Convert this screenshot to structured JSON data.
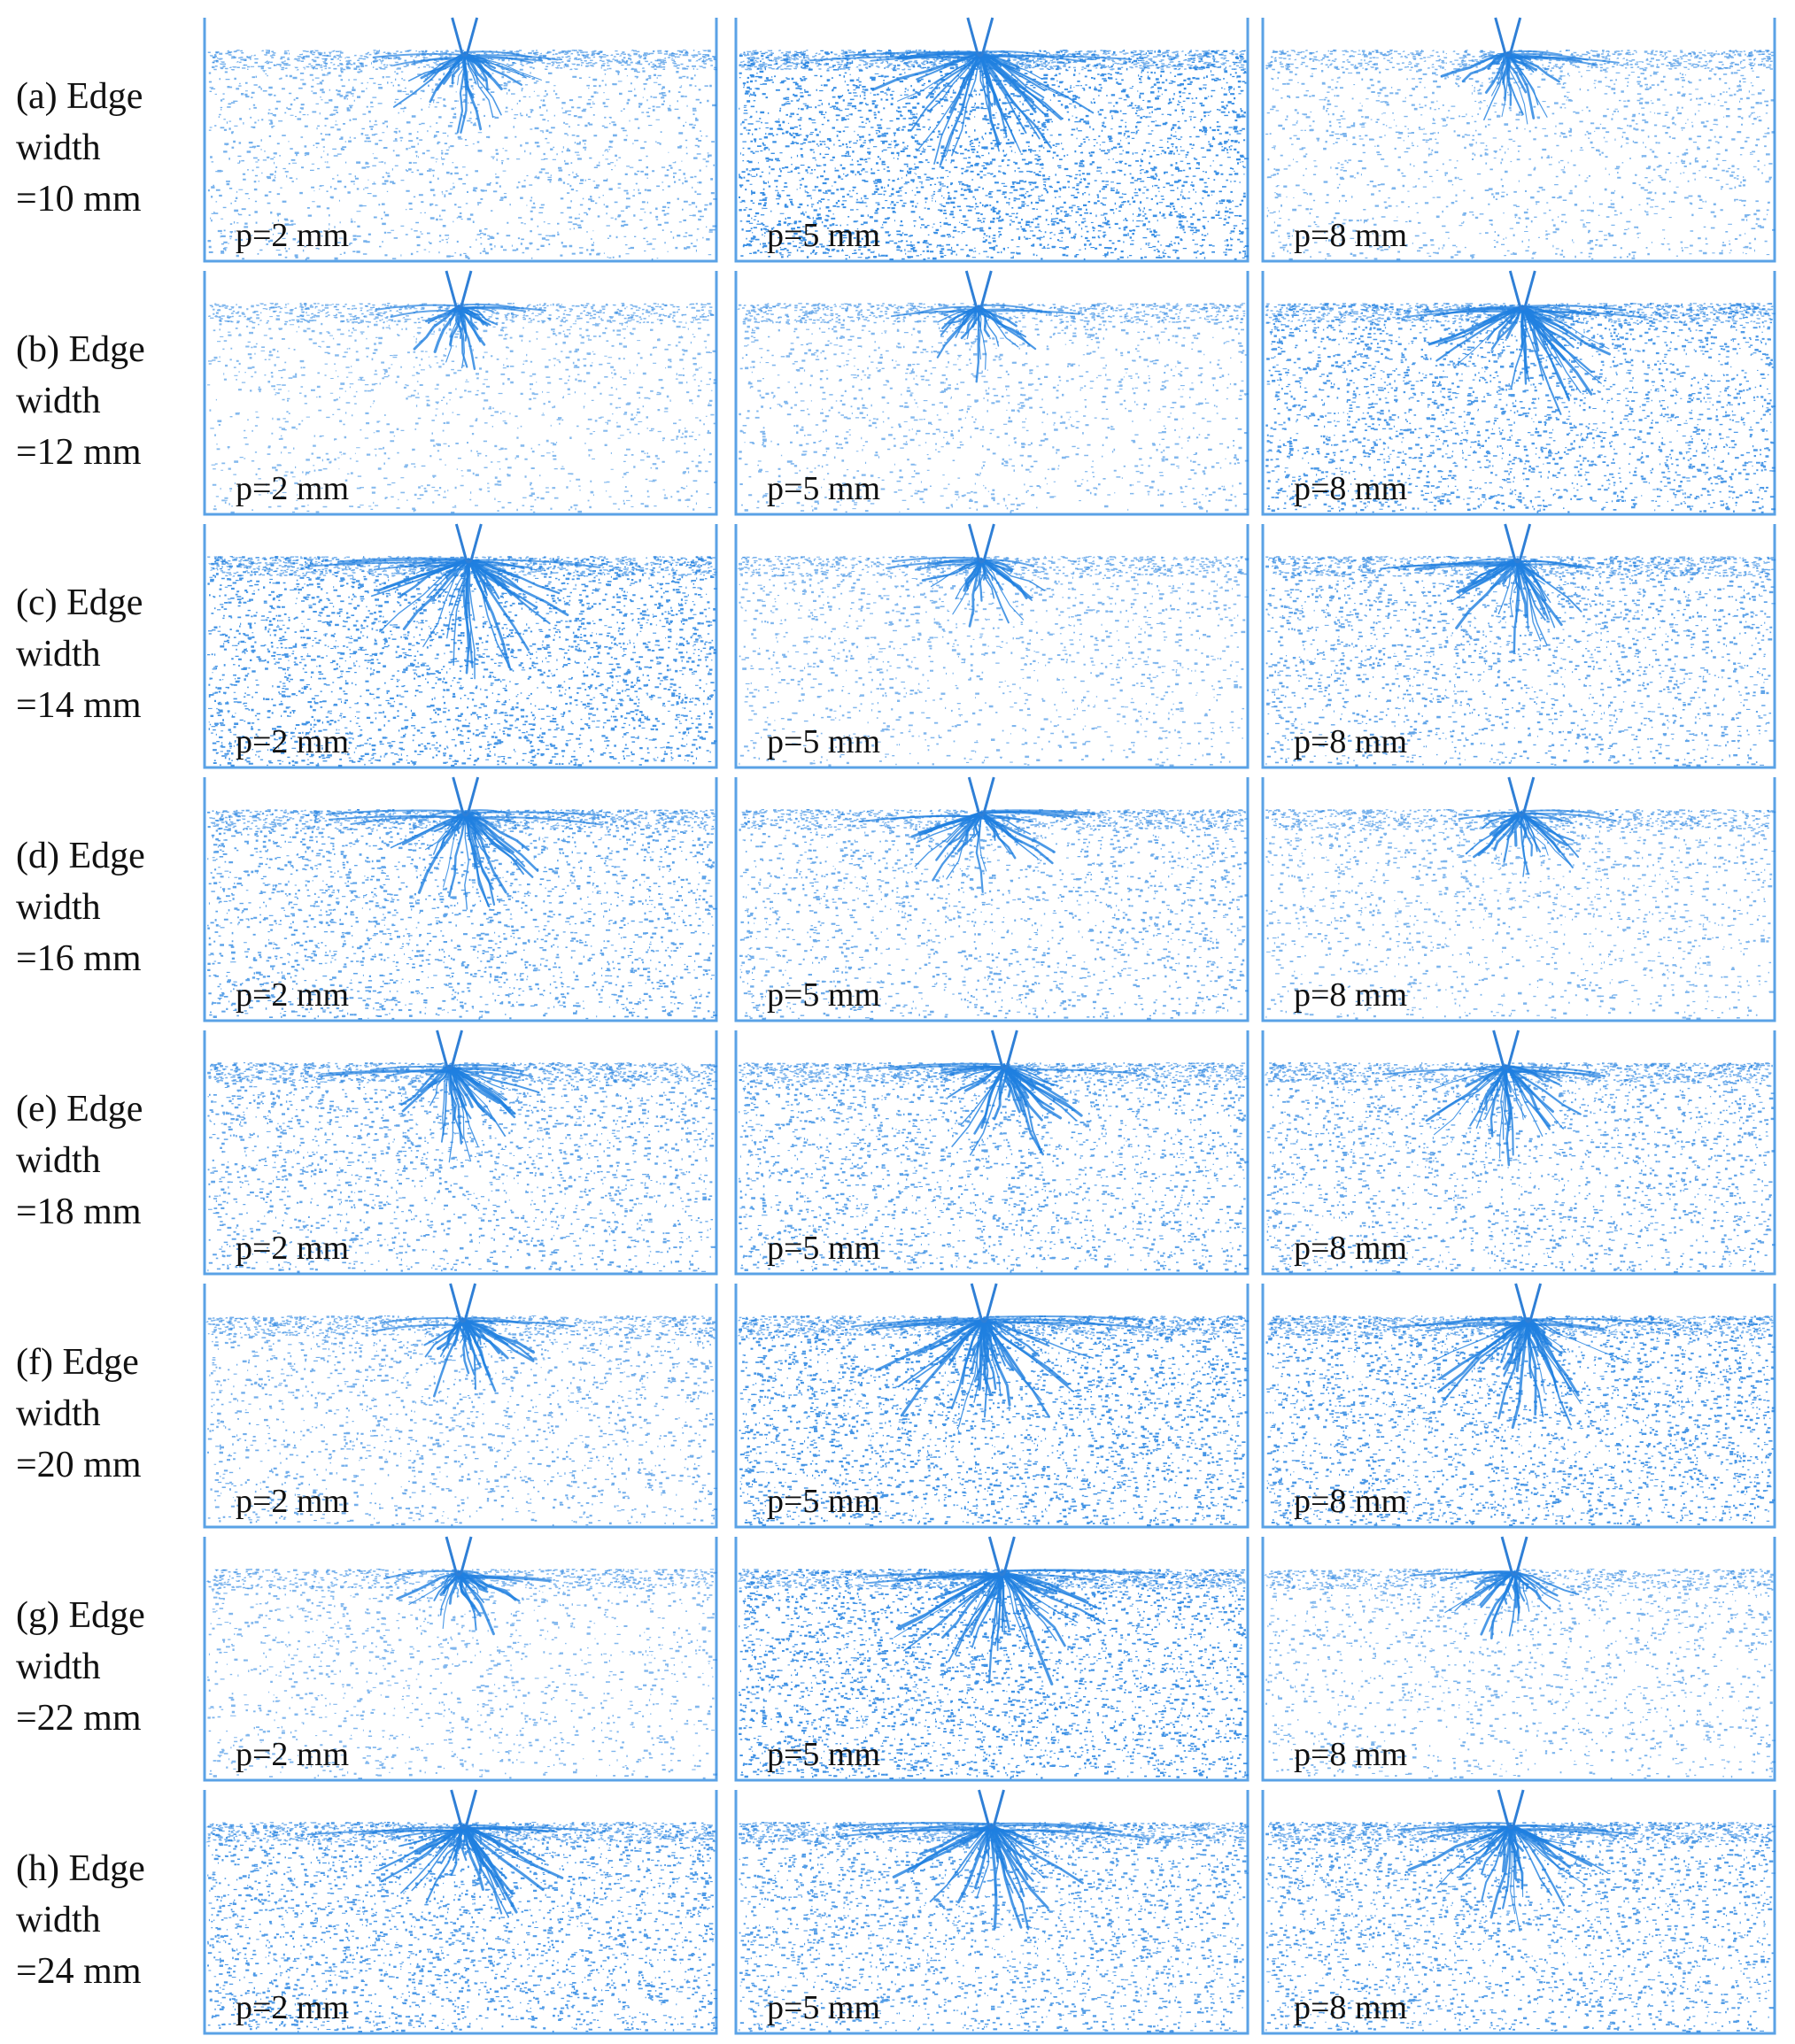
{
  "figure": {
    "rows": [
      {
        "label_lines": [
          "(a) Edge",
          "width",
          "=10 mm"
        ],
        "panels": [
          {
            "label": "p=2 mm",
            "density": 0.35
          },
          {
            "label": "p=5 mm",
            "density": 0.95
          },
          {
            "label": "p=8 mm",
            "density": 0.3
          }
        ]
      },
      {
        "label_lines": [
          "(b) Edge",
          "width",
          "=12 mm"
        ],
        "panels": [
          {
            "label": "p=2 mm",
            "density": 0.2
          },
          {
            "label": "p=5 mm",
            "density": 0.25
          },
          {
            "label": "p=8 mm",
            "density": 0.75
          }
        ]
      },
      {
        "label_lines": [
          "(c) Edge",
          "width",
          "=14 mm"
        ],
        "panels": [
          {
            "label": "p=2 mm",
            "density": 0.85
          },
          {
            "label": "p=5 mm",
            "density": 0.25
          },
          {
            "label": "p=8 mm",
            "density": 0.55
          }
        ]
      },
      {
        "label_lines": [
          "(d) Edge",
          "width",
          "=16 mm"
        ],
        "panels": [
          {
            "label": "p=2 mm",
            "density": 0.6
          },
          {
            "label": "p=5 mm",
            "density": 0.45
          },
          {
            "label": "p=8 mm",
            "density": 0.3
          }
        ]
      },
      {
        "label_lines": [
          "(e) Edge",
          "width",
          "=18 mm"
        ],
        "panels": [
          {
            "label": "p=2 mm",
            "density": 0.55
          },
          {
            "label": "p=5 mm",
            "density": 0.6
          },
          {
            "label": "p=8 mm",
            "density": 0.55
          }
        ]
      },
      {
        "label_lines": [
          "(f) Edge",
          "width",
          "=20 mm"
        ],
        "panels": [
          {
            "label": "p=2 mm",
            "density": 0.4
          },
          {
            "label": "p=5 mm",
            "density": 0.85
          },
          {
            "label": "p=8 mm",
            "density": 0.8
          }
        ]
      },
      {
        "label_lines": [
          "(g) Edge",
          "width",
          "=22 mm"
        ],
        "panels": [
          {
            "label": "p=2 mm",
            "density": 0.25
          },
          {
            "label": "p=5 mm",
            "density": 0.9
          },
          {
            "label": "p=8 mm",
            "density": 0.3
          }
        ]
      },
      {
        "label_lines": [
          "(h) Edge",
          "width",
          "=24 mm"
        ],
        "panels": [
          {
            "label": "p=2 mm",
            "density": 0.75
          },
          {
            "label": "p=5 mm",
            "density": 0.7
          },
          {
            "label": "p=8 mm",
            "density": 0.7
          }
        ]
      }
    ]
  },
  "colors": {
    "particles": "#1f7fe0",
    "frame": "#5aa2e6",
    "cutter": "#2f7fd6"
  }
}
